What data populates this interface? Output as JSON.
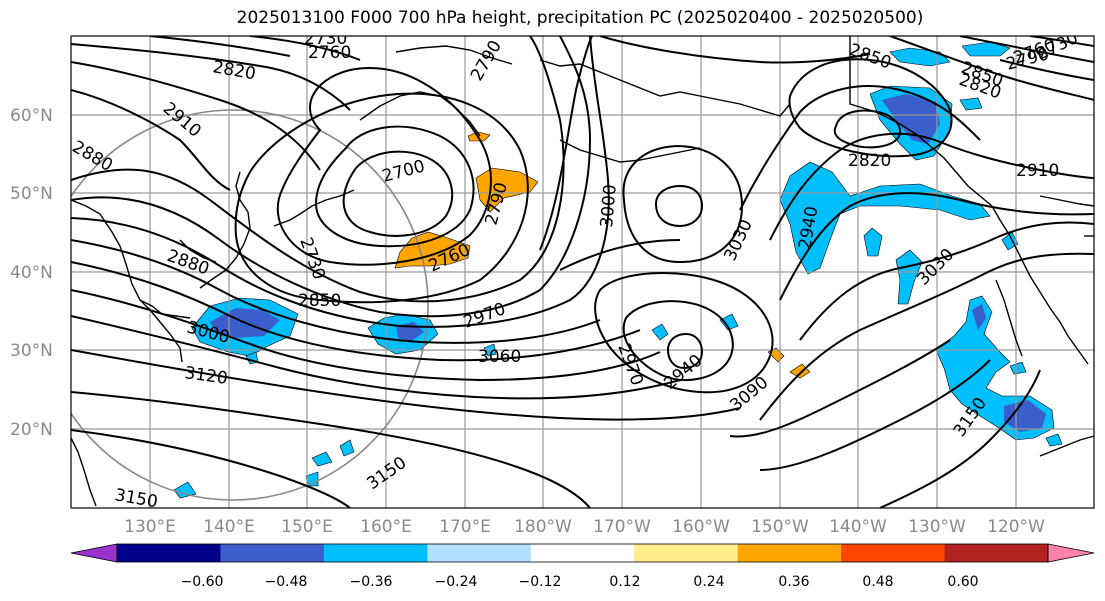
{
  "title": "2025013100 F000 700 hPa height, precipitation PC (2025020400 - 2025020500)",
  "lat_labels": [
    "60°N",
    "50°N",
    "40°N",
    "30°N",
    "20°N"
  ],
  "lon_labels": [
    "130°E",
    "140°E",
    "150°E",
    "160°E",
    "170°E",
    "180°W",
    "170°W",
    "160°W",
    "150°W",
    "140°W",
    "130°W",
    "120°W"
  ],
  "colorbar": {
    "colors": [
      "#9a32cd",
      "#00008b",
      "#3a5fcd",
      "#00bfff",
      "#b0e2ff",
      "#ffffff",
      "#ffec8b",
      "#ffa500",
      "#ff4500",
      "#b22222",
      "#ff82ab"
    ],
    "ticks": [
      "−0.60",
      "−0.48",
      "−0.36",
      "−0.24",
      "−0.12",
      "0.12",
      "0.24",
      "0.36",
      "0.48",
      "0.60"
    ]
  },
  "contour_labels": [
    "2730",
    "2760",
    "2790",
    "2820",
    "2910",
    "2880",
    "2880",
    "2700",
    "2730",
    "2760",
    "2790",
    "2850",
    "3000",
    "3030",
    "3060",
    "2970",
    "3120",
    "2970",
    "2940",
    "3090",
    "3150",
    "3150",
    "3000",
    "2850",
    "2820",
    "2910",
    "2940",
    "3030",
    "3150",
    "2850",
    "2790",
    "2820",
    "2760",
    "2730"
  ],
  "map_style": {
    "projection": "plate-carree",
    "grid": true,
    "coastlines": true
  }
}
